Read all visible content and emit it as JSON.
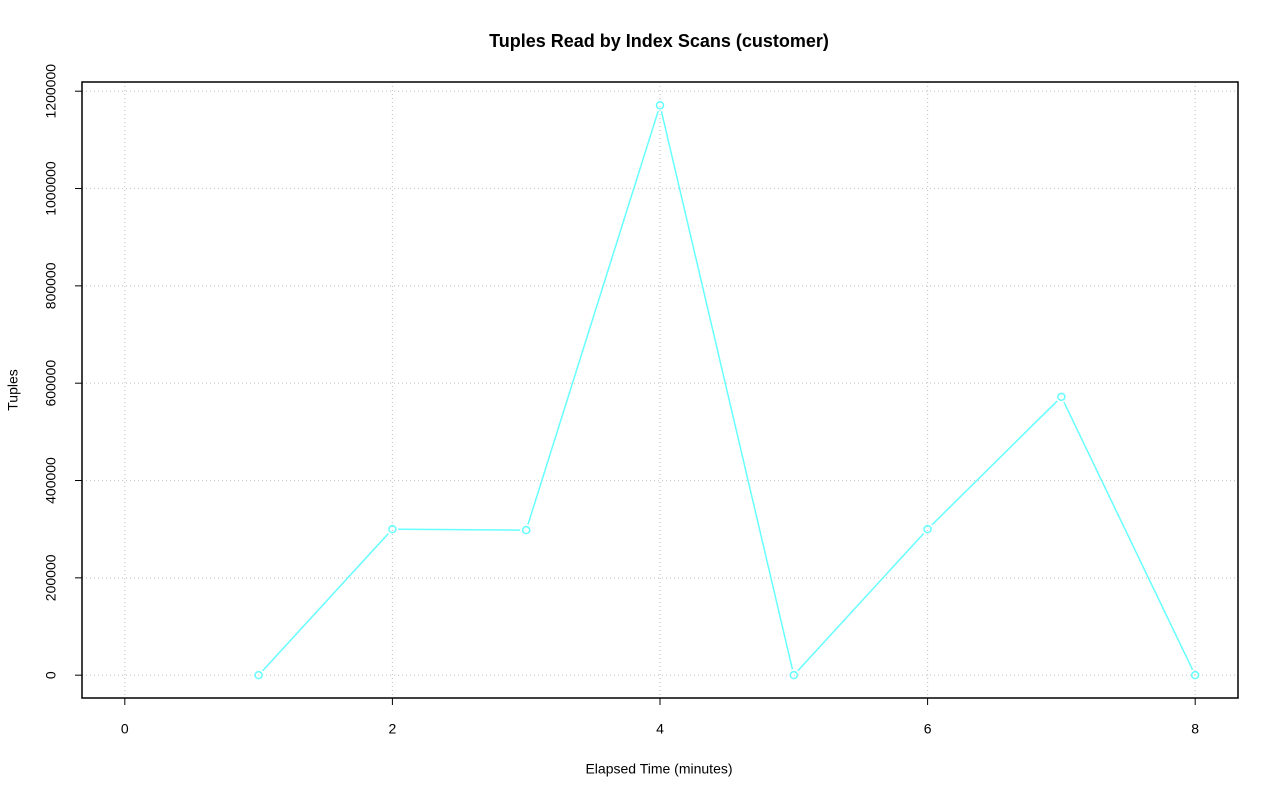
{
  "chart_data": {
    "type": "line",
    "title": "Tuples Read by Index Scans (customer)",
    "x_label": "Elapsed Time (minutes)",
    "y_label": "Tuples",
    "x": [
      1,
      2,
      3,
      4,
      5,
      6,
      7,
      8
    ],
    "series": [
      {
        "color": "#66ffff",
        "values": [
          0,
          300000,
          298000,
          1171000,
          0,
          300000,
          572000,
          0
        ]
      }
    ],
    "xlim": [
      -0.32,
      8.32
    ],
    "ylim": [
      -46900,
      1218900
    ],
    "xticks": [
      0,
      2,
      4,
      6,
      8
    ],
    "yticks": [
      0,
      200000,
      400000,
      600000,
      800000,
      1000000,
      1200000
    ],
    "grid": true
  }
}
